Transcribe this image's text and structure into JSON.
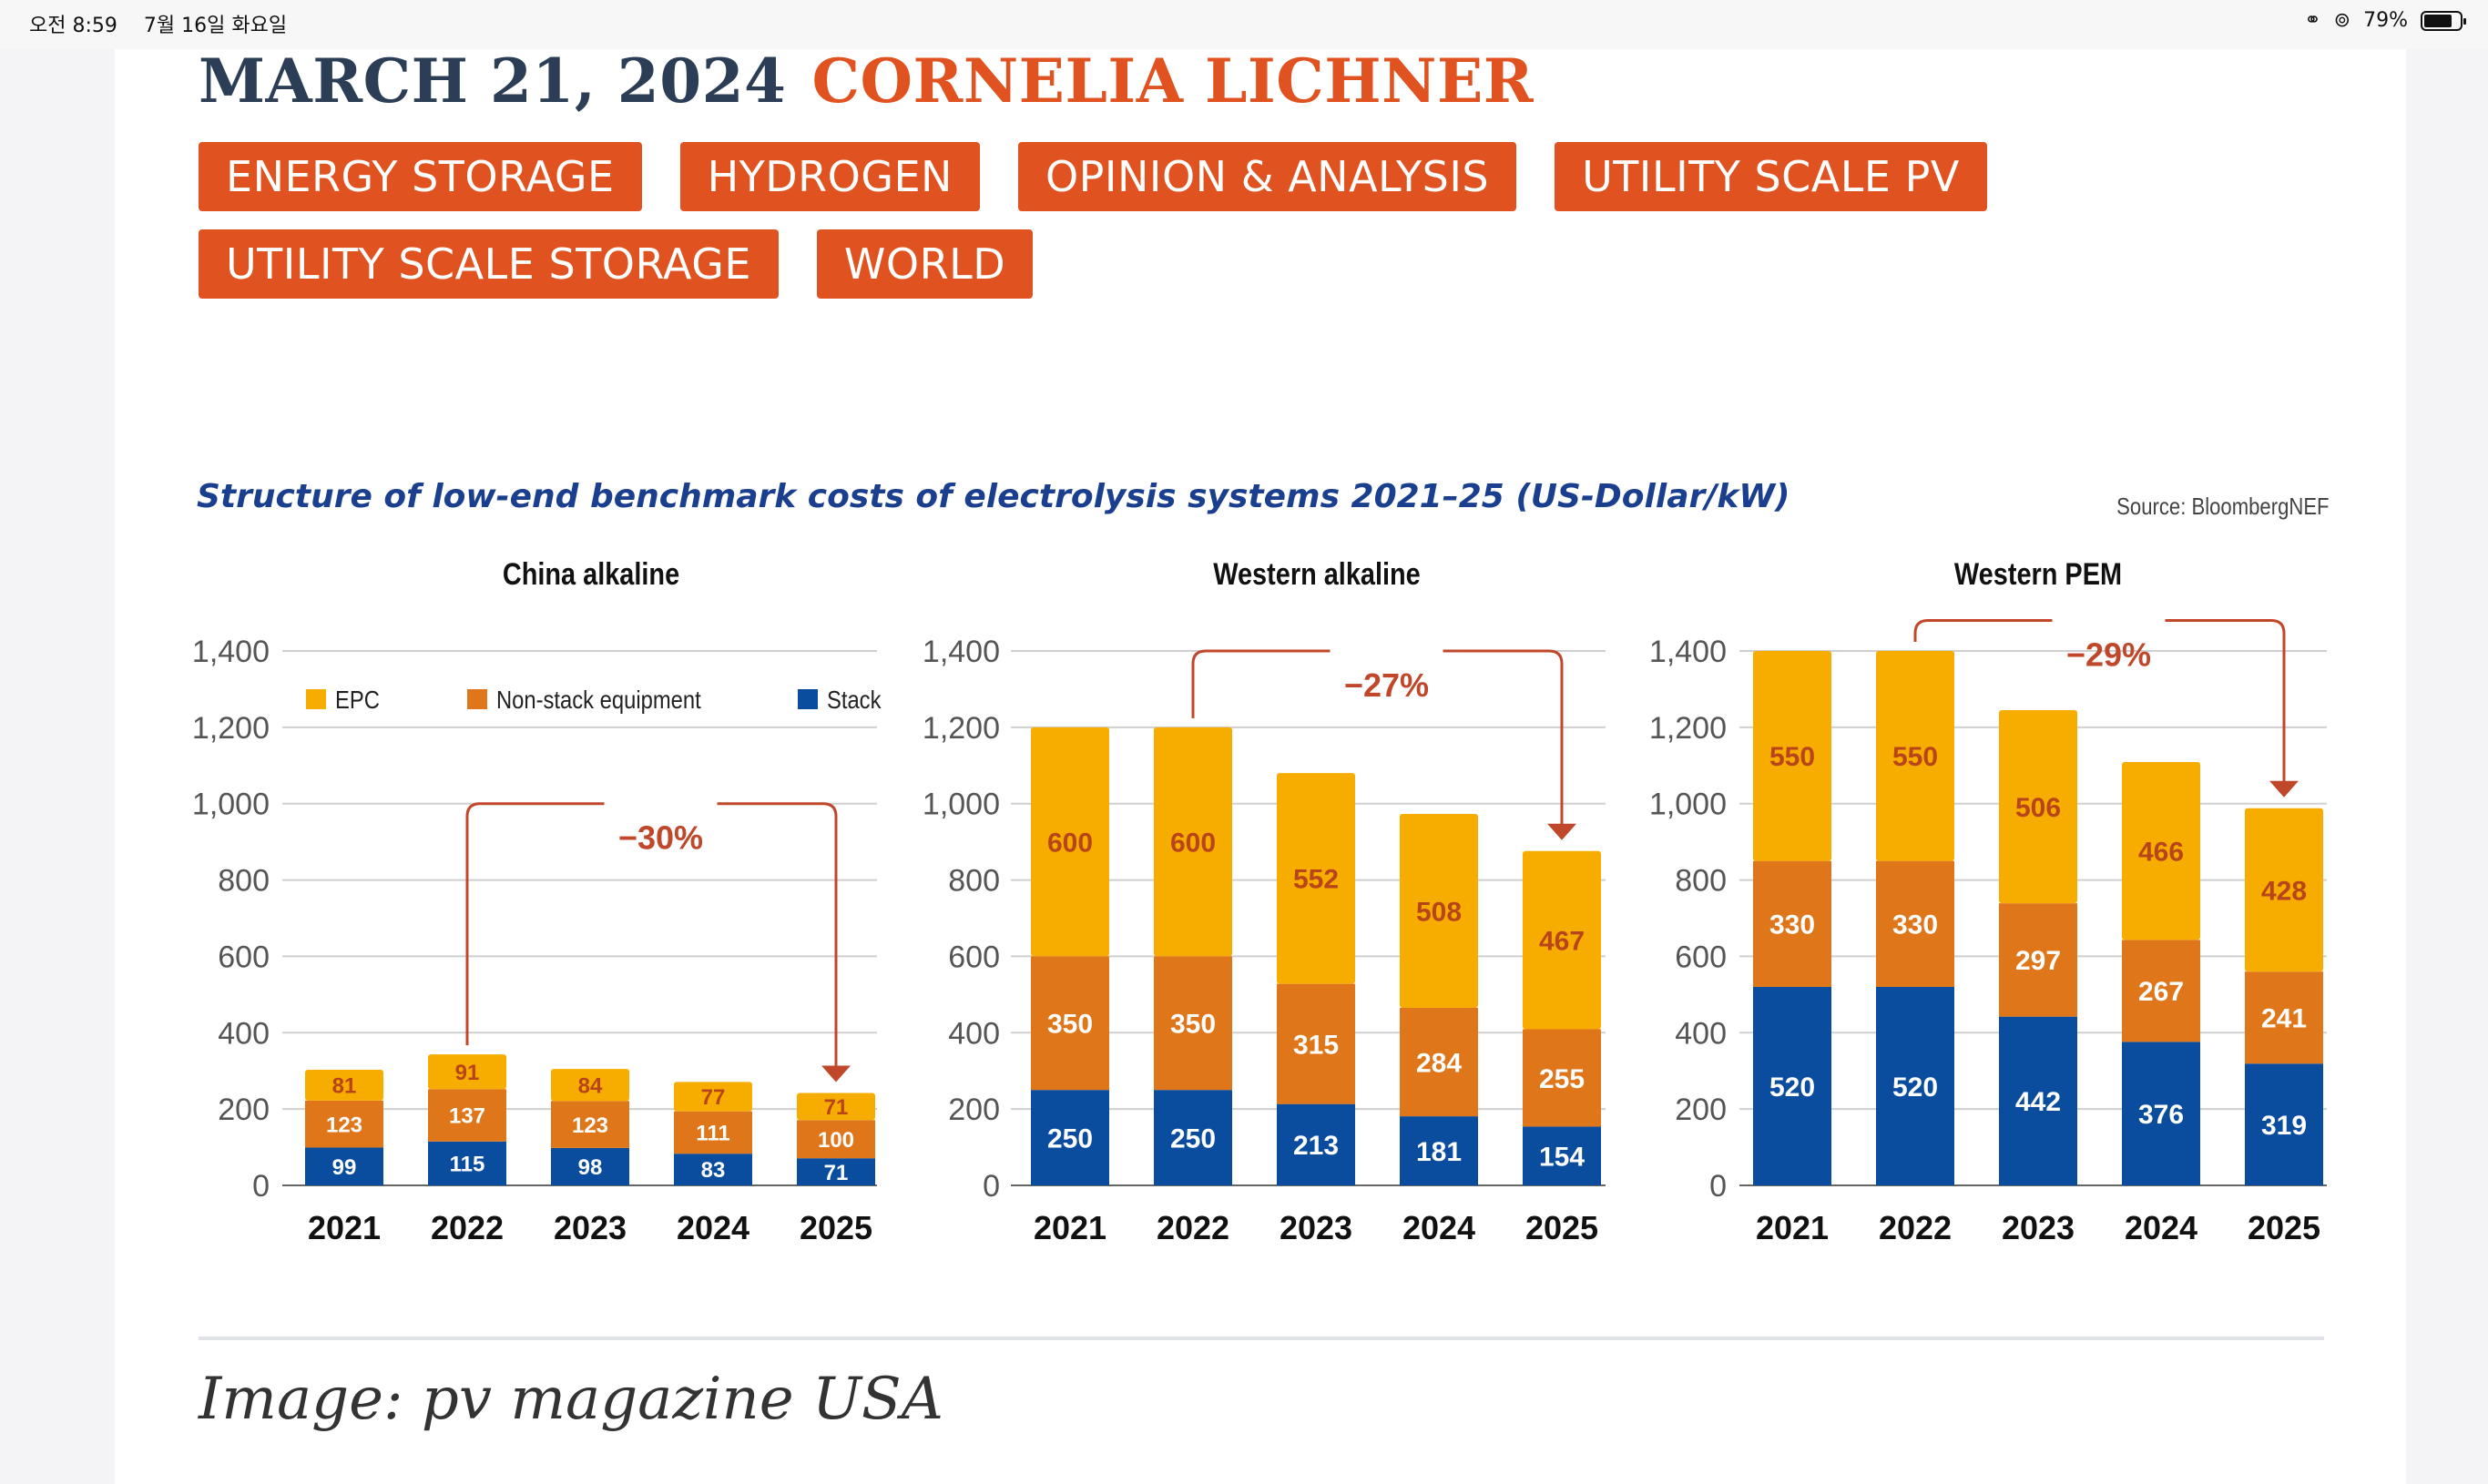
{
  "status_bar": {
    "time": "오전 8:59",
    "date": "7월 16일 화요일",
    "battery": "79%",
    "battery_level": 0.79
  },
  "article": {
    "date": "MARCH 21, 2024",
    "author": "CORNELIA LICHNER",
    "tags_row1": [
      "ENERGY STORAGE",
      "HYDROGEN",
      "OPINION & ANALYSIS",
      "UTILITY SCALE PV"
    ],
    "tags_row2": [
      "UTILITY SCALE STORAGE",
      "WORLD"
    ],
    "caption": "Image: pv magazine USA"
  },
  "colors": {
    "accent": "#e0521f",
    "date_text": "#2c3e55",
    "epc": "#f7ad00",
    "non_stack": "#e0761a",
    "stack": "#0a4d9e",
    "arrow": "#c0472a"
  },
  "chart_data": {
    "type": "bar",
    "stacked": true,
    "title": "Structure of low-end benchmark costs of electrolysis systems 2021–25 (US-Dollar/kW)",
    "source": "Source: BloombergNEF",
    "legend": [
      "EPC",
      "Non-stack equipment",
      "Stack"
    ],
    "legend_placement": "top",
    "ylim": [
      0,
      1400
    ],
    "yticks": [
      "0",
      "200",
      "400",
      "600",
      "800",
      "1,000",
      "1,200",
      "1,400"
    ],
    "ytick_values": [
      0,
      200,
      400,
      600,
      800,
      1000,
      1200,
      1400
    ],
    "grid": true,
    "panels": [
      {
        "title": "China alkaline",
        "categories": [
          "2021",
          "2022",
          "2023",
          "2024",
          "2025"
        ],
        "series": [
          {
            "name": "Stack",
            "values": [
              99,
              115,
              98,
              83,
              71
            ]
          },
          {
            "name": "Non-stack equipment",
            "values": [
              123,
              137,
              123,
              111,
              100
            ]
          },
          {
            "name": "EPC",
            "values": [
              81,
              91,
              84,
              77,
              71
            ]
          }
        ],
        "annotation": {
          "label": "−30%",
          "from": "2022",
          "to": "2025",
          "level": 1000
        }
      },
      {
        "title": "Western alkaline",
        "categories": [
          "2021",
          "2022",
          "2023",
          "2024",
          "2025"
        ],
        "series": [
          {
            "name": "Stack",
            "values": [
              250,
              250,
              213,
              181,
              154
            ]
          },
          {
            "name": "Non-stack equipment",
            "values": [
              350,
              350,
              315,
              284,
              255
            ]
          },
          {
            "name": "EPC",
            "values": [
              600,
              600,
              552,
              508,
              467
            ]
          }
        ],
        "annotation": {
          "label": "−27%",
          "from": "2022",
          "to": "2025",
          "level": 1400
        }
      },
      {
        "title": "Western PEM",
        "categories": [
          "2021",
          "2022",
          "2023",
          "2024",
          "2025"
        ],
        "series": [
          {
            "name": "Stack",
            "values": [
              520,
              520,
              442,
              376,
              319
            ]
          },
          {
            "name": "Non-stack equipment",
            "values": [
              330,
              330,
              297,
              267,
              241
            ]
          },
          {
            "name": "EPC",
            "values": [
              550,
              550,
              506,
              466,
              428
            ]
          }
        ],
        "annotation": {
          "label": "−29%",
          "from": "2022",
          "to": "2025",
          "level": 1480
        }
      }
    ]
  }
}
